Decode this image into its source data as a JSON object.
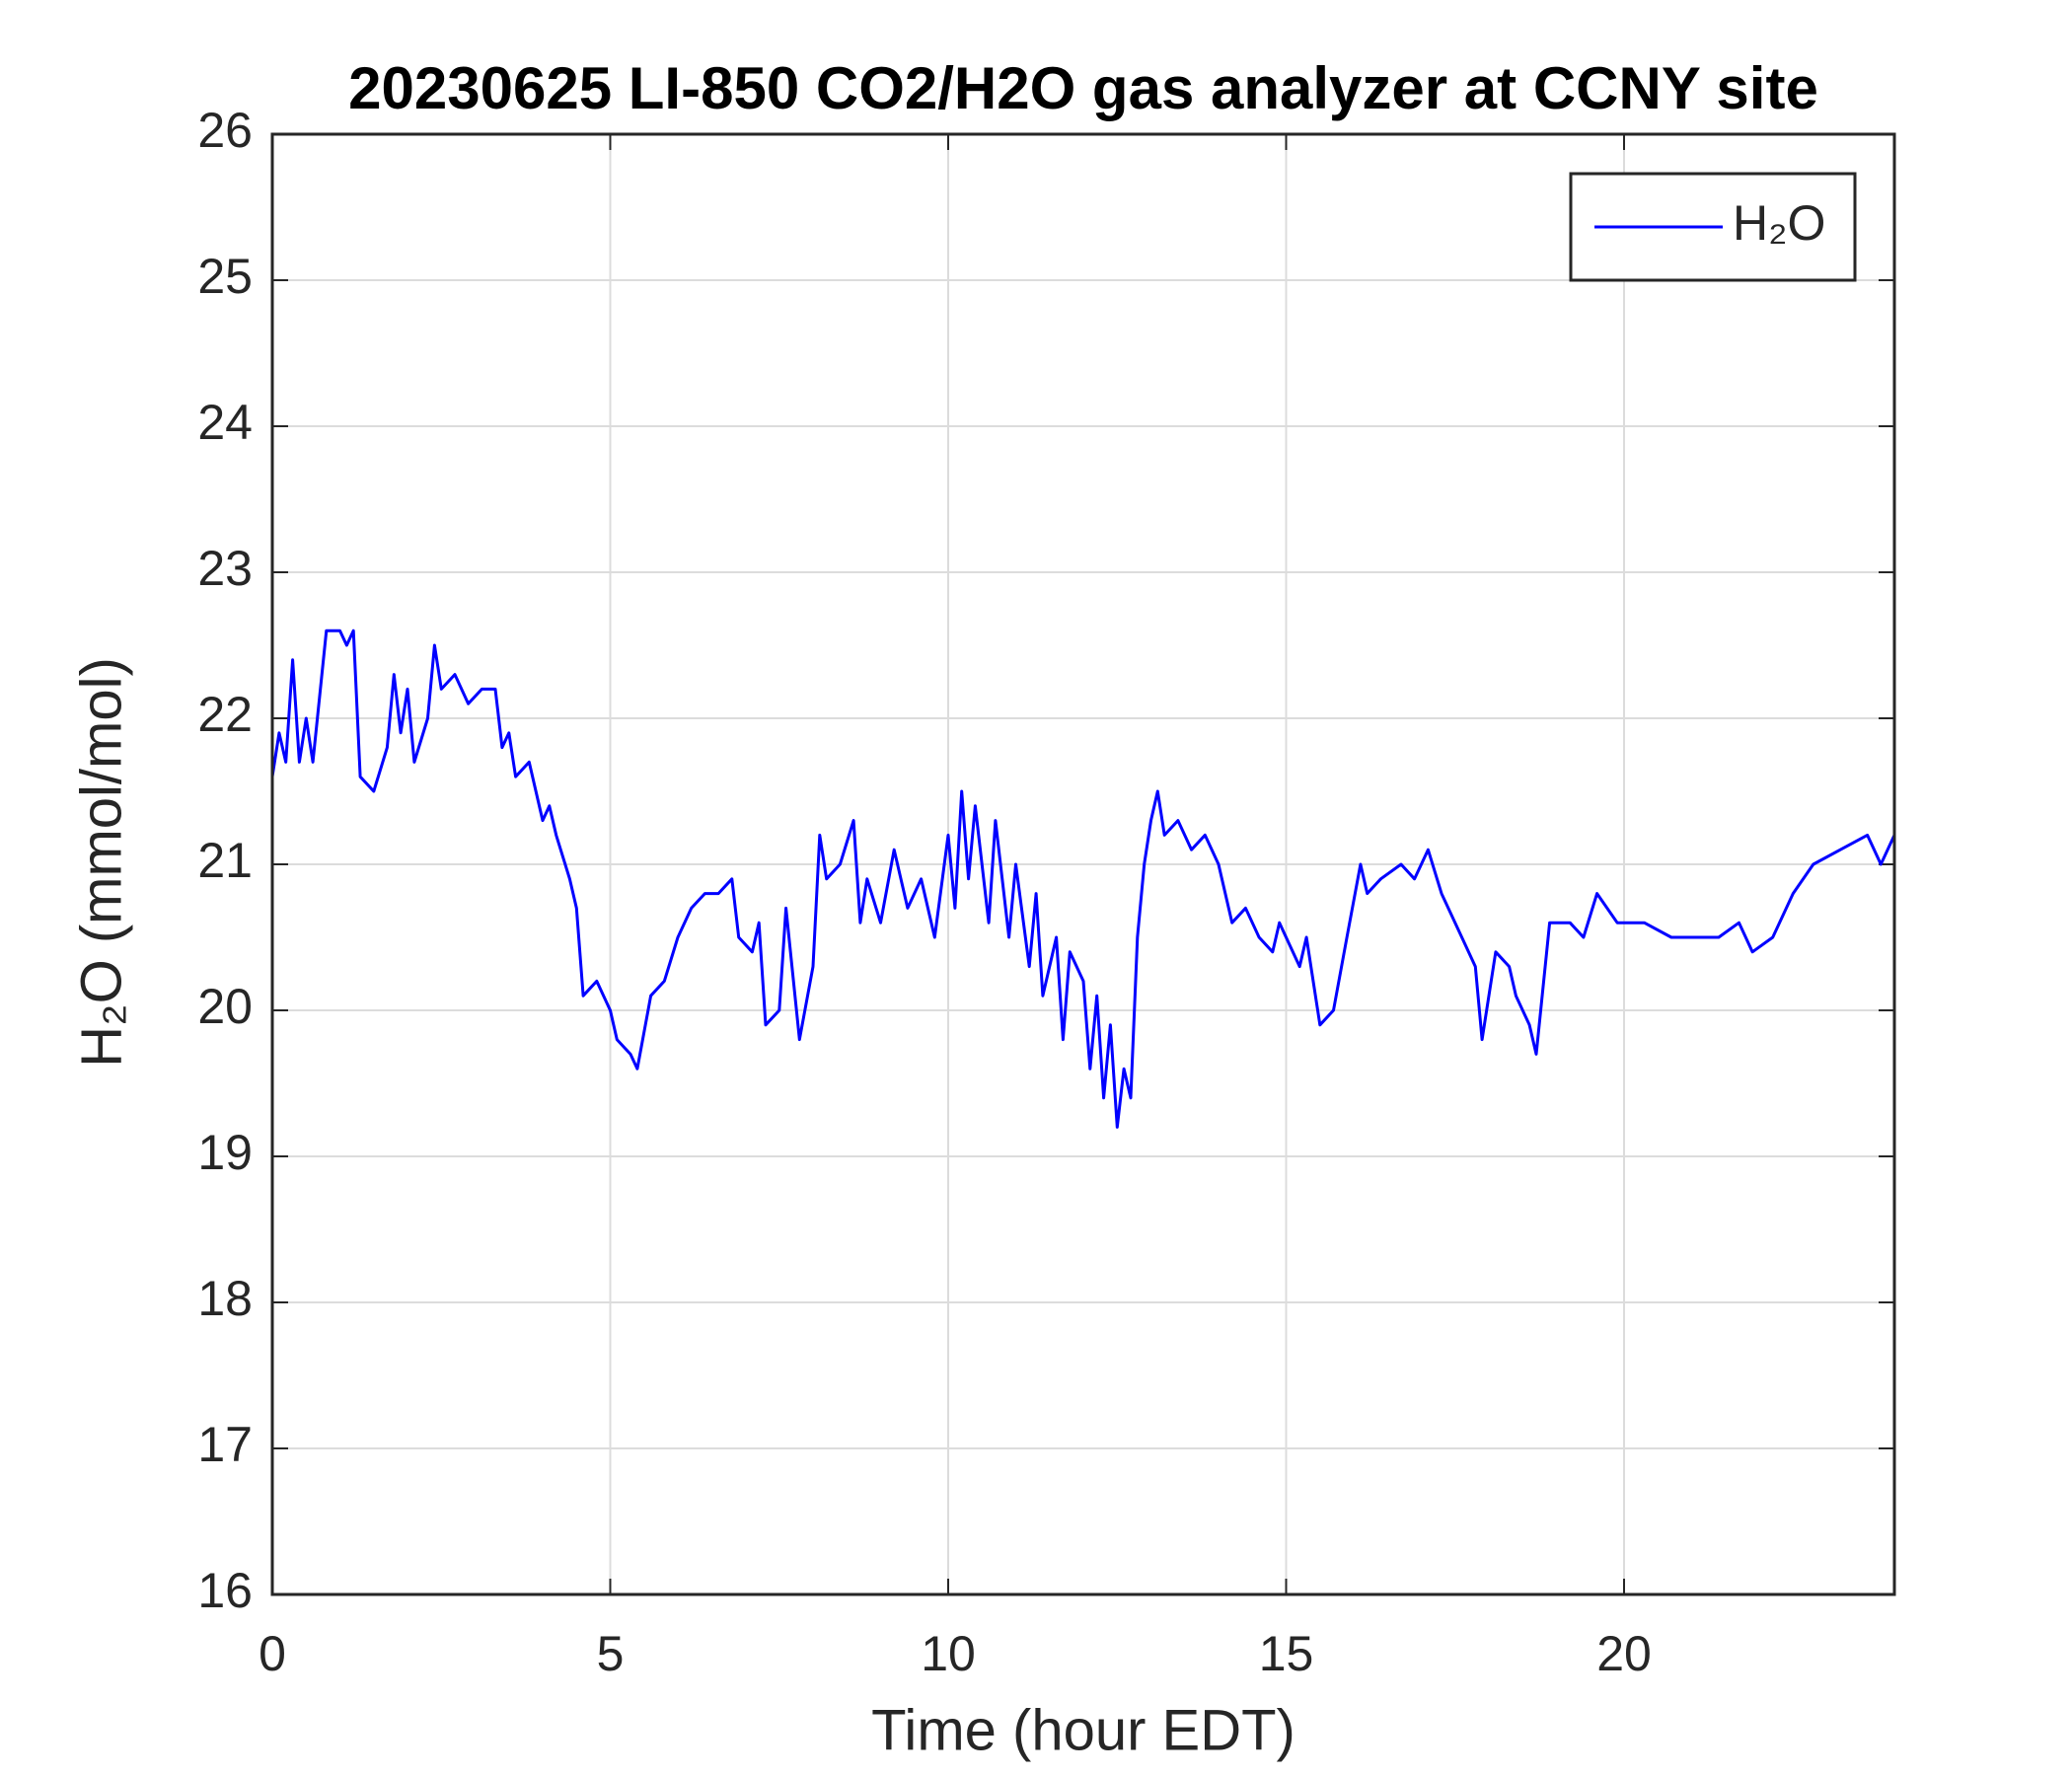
{
  "chart_data": {
    "type": "line",
    "title": "20230625 LI-850 CO2/H2O gas analyzer at CCNY site",
    "x_label": "Time (hour EDT)",
    "y_label": "H₂O (mmol/mol)",
    "xlim": [
      0,
      24
    ],
    "xticks": [
      0,
      5,
      10,
      15,
      20
    ],
    "ylim": [
      16,
      26
    ],
    "yticks": [
      16,
      17,
      18,
      19,
      20,
      21,
      22,
      23,
      24,
      25,
      26
    ],
    "grid": true,
    "legend": "upper right",
    "series": [
      {
        "name": "H₂O",
        "color": "#0000ff",
        "x": [
          0,
          0.1,
          0.2,
          0.3,
          0.4,
          0.5,
          0.6,
          0.8,
          1.0,
          1.1,
          1.2,
          1.3,
          1.5,
          1.7,
          1.8,
          1.9,
          2.0,
          2.1,
          2.3,
          2.4,
          2.5,
          2.7,
          2.9,
          3.1,
          3.3,
          3.4,
          3.5,
          3.6,
          3.8,
          4.0,
          4.1,
          4.2,
          4.4,
          4.5,
          4.6,
          4.8,
          5.0,
          5.1,
          5.3,
          5.4,
          5.6,
          5.8,
          6.0,
          6.2,
          6.4,
          6.6,
          6.8,
          6.9,
          7.1,
          7.2,
          7.3,
          7.5,
          7.6,
          7.8,
          8.0,
          8.1,
          8.2,
          8.4,
          8.6,
          8.7,
          8.8,
          9.0,
          9.2,
          9.4,
          9.6,
          9.8,
          10.0,
          10.1,
          10.2,
          10.3,
          10.4,
          10.6,
          10.7,
          10.9,
          11.0,
          11.2,
          11.3,
          11.4,
          11.6,
          11.7,
          11.8,
          12.0,
          12.1,
          12.2,
          12.3,
          12.4,
          12.5,
          12.6,
          12.7,
          12.8,
          12.9,
          13.0,
          13.1,
          13.2,
          13.4,
          13.6,
          13.8,
          14.0,
          14.2,
          14.4,
          14.6,
          14.8,
          14.9,
          15.0,
          15.2,
          15.3,
          15.5,
          15.7,
          15.9,
          16.1,
          16.2,
          16.4,
          16.7,
          16.9,
          17.1,
          17.3,
          17.6,
          17.8,
          17.9,
          18.1,
          18.3,
          18.4,
          18.6,
          18.7,
          18.9,
          19.2,
          19.4,
          19.6,
          19.9,
          20.3,
          20.7,
          21.1,
          21.4,
          21.7,
          21.9,
          22.2,
          22.5,
          22.8,
          23.2,
          23.6,
          23.8,
          24.0
        ],
        "values": [
          21.6,
          21.9,
          21.7,
          22.4,
          21.7,
          22.0,
          21.7,
          22.6,
          22.6,
          22.5,
          22.6,
          21.6,
          21.5,
          21.8,
          22.3,
          21.9,
          22.2,
          21.7,
          22.0,
          22.5,
          22.2,
          22.3,
          22.1,
          22.2,
          22.2,
          21.8,
          21.9,
          21.6,
          21.7,
          21.3,
          21.4,
          21.2,
          20.9,
          20.7,
          20.1,
          20.2,
          20.0,
          19.8,
          19.7,
          19.6,
          20.1,
          20.2,
          20.5,
          20.7,
          20.8,
          20.8,
          20.9,
          20.5,
          20.4,
          20.6,
          19.9,
          20.0,
          20.7,
          19.8,
          20.3,
          21.2,
          20.9,
          21.0,
          21.3,
          20.6,
          20.9,
          20.6,
          21.1,
          20.7,
          20.9,
          20.5,
          21.2,
          20.7,
          21.5,
          20.9,
          21.4,
          20.6,
          21.3,
          20.5,
          21.0,
          20.3,
          20.8,
          20.1,
          20.5,
          19.8,
          20.4,
          20.2,
          19.6,
          20.1,
          19.4,
          19.9,
          19.2,
          19.6,
          19.4,
          20.5,
          21.0,
          21.3,
          21.5,
          21.2,
          21.3,
          21.1,
          21.2,
          21.0,
          20.6,
          20.7,
          20.5,
          20.4,
          20.6,
          20.5,
          20.3,
          20.5,
          19.9,
          20.0,
          20.5,
          21.0,
          20.8,
          20.9,
          21.0,
          20.9,
          21.1,
          20.8,
          20.5,
          20.3,
          19.8,
          20.4,
          20.3,
          20.1,
          19.9,
          19.7,
          20.6,
          20.6,
          20.5,
          20.8,
          20.6,
          20.6,
          20.5,
          20.5,
          20.5,
          20.6,
          20.4,
          20.5,
          20.8,
          21.0,
          21.1,
          21.2,
          21.0,
          21.2
        ]
      }
    ]
  }
}
